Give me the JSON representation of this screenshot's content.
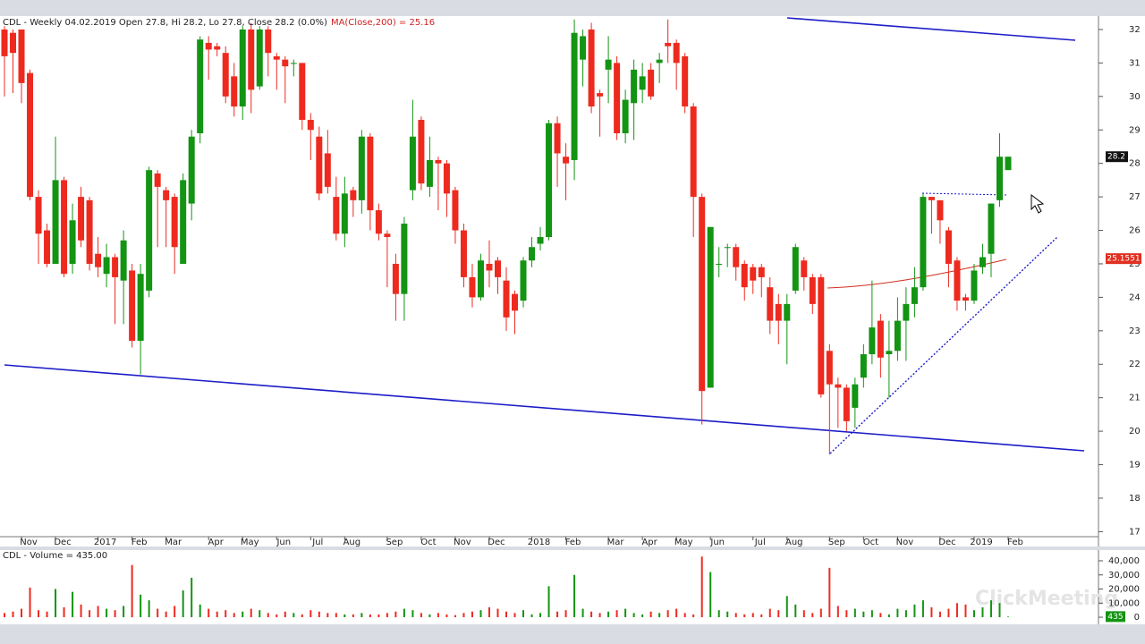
{
  "chart_data": [
    {
      "type": "candlestick",
      "header": "CDL - Weekly 04.02.2019 Open 27.8, Hi 28.2, Lo 27.8, Close 28.2 (0.0%)",
      "indicator": "MA(Close,200) = 25.16",
      "last_price": 28.2,
      "ma_last": 25.1551,
      "up_color": "#139413",
      "down_color": "#ee2a1f",
      "categories": [
        null,
        null,
        "Nov",
        null,
        null,
        null,
        "Dec",
        null,
        null,
        null,
        null,
        "2017",
        null,
        null,
        null,
        "Feb",
        null,
        null,
        null,
        "Mar",
        null,
        null,
        null,
        null,
        "Apr",
        null,
        null,
        null,
        "May",
        null,
        null,
        null,
        "Jun",
        null,
        null,
        null,
        "Jul",
        null,
        null,
        null,
        "Aug",
        null,
        null,
        null,
        null,
        "Sep",
        null,
        null,
        null,
        "Oct",
        null,
        null,
        null,
        "Nov",
        null,
        null,
        null,
        "Dec",
        null,
        null,
        null,
        null,
        "2018",
        null,
        null,
        null,
        "Feb",
        null,
        null,
        null,
        null,
        "Mar",
        null,
        null,
        null,
        "Apr",
        null,
        null,
        null,
        "May",
        null,
        null,
        null,
        "Jun",
        null,
        null,
        null,
        null,
        "Jul",
        null,
        null,
        null,
        "Aug",
        null,
        null,
        null,
        null,
        "Sep",
        null,
        null,
        null,
        "Oct",
        null,
        null,
        null,
        "Nov",
        null,
        null,
        null,
        null,
        "Dec",
        null,
        null,
        null,
        "2019",
        null,
        null,
        null,
        "Feb"
      ],
      "open": [
        32.0,
        31.9,
        32.0,
        30.7,
        27.0,
        26.0,
        25.0,
        27.5,
        25.0,
        27.0,
        26.9,
        25.3,
        24.7,
        25.2,
        24.5,
        24.8,
        22.7,
        24.2,
        27.7,
        27.2,
        27.0,
        25.0,
        26.8,
        28.9,
        31.6,
        31.5,
        31.3,
        30.6,
        29.7,
        32.0,
        30.3,
        32.0,
        31.2,
        31.1,
        31.0,
        31.0,
        29.3,
        28.8,
        28.3,
        27.0,
        25.9,
        27.2,
        26.9,
        28.8,
        26.6,
        25.9,
        25.0,
        24.1,
        27.2,
        29.3,
        27.3,
        28.1,
        28.0,
        27.2,
        26.0,
        24.6,
        24.0,
        25.0,
        25.1,
        24.5,
        24.1,
        23.9,
        25.1,
        25.6,
        25.8,
        29.2,
        28.2,
        28.1,
        31.1,
        32.0,
        30.1,
        30.8,
        31.0,
        28.9,
        29.8,
        30.2,
        30.8,
        31.0,
        31.6,
        31.6,
        31.2,
        29.7,
        27.0,
        21.3,
        25.0,
        25.5,
        25.5,
        25.0,
        24.9,
        24.9,
        24.3,
        23.8,
        23.3,
        24.2,
        25.1,
        24.6,
        24.6,
        22.4,
        21.4,
        21.3,
        20.7,
        21.6,
        22.3,
        23.3,
        22.3,
        22.4,
        23.3,
        23.8,
        24.3,
        27.0,
        26.9,
        26.0,
        25.1,
        24.0,
        23.9,
        24.9,
        25.3,
        26.9,
        27.8
      ],
      "high": [
        32.1,
        32.0,
        32.0,
        30.8,
        27.2,
        26.2,
        28.8,
        27.6,
        26.8,
        27.3,
        27.0,
        25.8,
        25.6,
        25.3,
        26.0,
        25.0,
        25.0,
        27.9,
        27.8,
        27.3,
        27.1,
        27.7,
        29.0,
        31.8,
        31.8,
        31.6,
        31.5,
        31.0,
        32.1,
        32.2,
        32.1,
        32.1,
        31.3,
        31.2,
        31.1,
        31.0,
        29.5,
        29.1,
        29.0,
        27.6,
        27.6,
        27.3,
        29.0,
        28.9,
        26.8,
        26.0,
        25.3,
        26.4,
        29.9,
        29.4,
        28.8,
        28.2,
        28.1,
        27.3,
        26.2,
        25.0,
        25.3,
        25.7,
        25.2,
        24.9,
        24.2,
        25.2,
        25.8,
        26.1,
        29.3,
        29.4,
        28.6,
        32.3,
        32.0,
        32.2,
        30.2,
        31.8,
        31.2,
        30.2,
        31.1,
        31.0,
        31.0,
        31.3,
        32.3,
        31.7,
        31.3,
        29.8,
        27.1,
        26.1,
        25.5,
        25.6,
        25.6,
        25.1,
        25.0,
        25.0,
        24.6,
        24.1,
        24.1,
        25.6,
        25.2,
        24.7,
        24.7,
        22.6,
        21.6,
        21.4,
        21.6,
        22.6,
        24.5,
        23.5,
        23.3,
        24.0,
        24.3,
        24.9,
        27.1,
        27.0,
        26.9,
        26.1,
        25.2,
        24.1,
        25.0,
        25.6,
        26.8,
        28.9,
        28.2
      ],
      "low": [
        30.0,
        30.1,
        29.8,
        26.9,
        25.0,
        24.9,
        25.0,
        24.6,
        24.7,
        25.5,
        24.8,
        24.6,
        24.3,
        23.2,
        23.2,
        22.5,
        21.7,
        24.0,
        25.5,
        25.5,
        24.7,
        25.0,
        26.3,
        28.6,
        30.5,
        31.2,
        29.8,
        29.4,
        29.3,
        29.5,
        30.2,
        30.6,
        30.2,
        29.8,
        30.6,
        29.0,
        28.1,
        26.9,
        27.1,
        25.7,
        25.5,
        26.4,
        26.5,
        26.0,
        25.7,
        24.3,
        23.3,
        23.3,
        26.9,
        27.2,
        27.0,
        26.6,
        26.4,
        25.6,
        24.3,
        23.7,
        23.9,
        24.3,
        24.1,
        23.0,
        22.9,
        23.7,
        24.9,
        25.4,
        25.7,
        27.3,
        26.9,
        27.5,
        30.3,
        29.5,
        28.8,
        29.8,
        28.7,
        28.6,
        28.7,
        29.8,
        29.9,
        30.4,
        31.0,
        30.2,
        29.5,
        25.8,
        20.2,
        21.3,
        24.6,
        24.9,
        24.5,
        23.9,
        24.1,
        24.0,
        22.9,
        22.6,
        22.0,
        24.1,
        24.2,
        23.5,
        21.0,
        19.3,
        20.1,
        20.0,
        20.1,
        21.3,
        22.0,
        21.6,
        21.0,
        22.1,
        22.1,
        23.4,
        24.2,
        25.9,
        25.6,
        24.3,
        23.6,
        23.6,
        23.8,
        24.7,
        24.6,
        26.7,
        27.8
      ],
      "close": [
        31.2,
        31.3,
        30.4,
        27.0,
        25.9,
        25.0,
        27.5,
        24.7,
        26.3,
        25.7,
        25.0,
        24.9,
        25.2,
        24.6,
        25.7,
        22.7,
        24.7,
        27.8,
        27.3,
        26.9,
        25.5,
        27.5,
        28.8,
        31.7,
        31.4,
        31.4,
        30.0,
        29.7,
        32.0,
        30.2,
        32.0,
        31.3,
        31.1,
        30.9,
        31.0,
        29.3,
        29.0,
        27.1,
        27.3,
        25.9,
        27.1,
        26.9,
        28.8,
        26.6,
        25.9,
        25.8,
        24.1,
        26.2,
        28.8,
        27.4,
        28.1,
        28.0,
        27.1,
        26.0,
        24.6,
        24.0,
        25.1,
        24.8,
        24.6,
        23.4,
        23.6,
        25.1,
        25.5,
        25.8,
        29.2,
        28.3,
        28.0,
        31.9,
        31.8,
        29.7,
        30.0,
        31.1,
        28.9,
        29.9,
        30.8,
        30.6,
        30.0,
        31.1,
        31.5,
        31.0,
        29.7,
        27.0,
        21.2,
        26.1,
        25.0,
        25.5,
        24.9,
        24.3,
        24.5,
        24.6,
        23.3,
        23.3,
        23.8,
        25.5,
        24.6,
        23.8,
        21.1,
        21.4,
        21.3,
        20.3,
        21.4,
        22.3,
        23.1,
        22.2,
        22.4,
        23.3,
        23.8,
        24.3,
        27.0,
        26.9,
        26.3,
        25.0,
        23.9,
        23.9,
        24.8,
        25.2,
        26.8,
        28.2,
        28.2
      ],
      "ylim": [
        16.85,
        32.4
      ],
      "yticks": [
        17,
        18,
        19,
        20,
        21,
        22,
        23,
        24,
        25,
        26,
        27,
        28,
        29,
        30,
        31,
        32
      ]
    },
    {
      "type": "bar",
      "header": "CDL - Volume = 435.00",
      "last_value": 435,
      "values": [
        3000,
        4000,
        6000,
        21000,
        5000,
        4000,
        20000,
        7000,
        18000,
        9000,
        5000,
        8000,
        6000,
        5000,
        8000,
        37000,
        16000,
        12000,
        6000,
        4000,
        8000,
        19000,
        28000,
        9000,
        6000,
        4000,
        5000,
        3000,
        4000,
        6000,
        5000,
        3000,
        2000,
        4000,
        3000,
        2000,
        5000,
        4000,
        3000,
        3000,
        2000,
        2000,
        3000,
        2000,
        2000,
        3000,
        4000,
        6000,
        5000,
        3000,
        2000,
        3000,
        2000,
        1500,
        3000,
        4000,
        5000,
        7000,
        6000,
        4000,
        3000,
        5000,
        2000,
        3000,
        22000,
        4000,
        5000,
        30000,
        6000,
        4000,
        3000,
        4000,
        5000,
        6000,
        3000,
        2000,
        4000,
        3000,
        5000,
        6000,
        3000,
        2000,
        43000,
        32000,
        5000,
        4000,
        3000,
        2000,
        3000,
        2000,
        6000,
        5000,
        15000,
        9000,
        5000,
        3000,
        6000,
        35000,
        8000,
        5000,
        6000,
        4000,
        5000,
        3000,
        2000,
        6000,
        5000,
        9000,
        12000,
        7000,
        4000,
        6000,
        10000,
        9000,
        5000,
        7000,
        12000,
        10000,
        435
      ],
      "ylim": [
        -4400,
        47600
      ],
      "yticks": [
        0,
        {
          "value": 10000,
          "label": "10,000"
        },
        {
          "value": 20000,
          "label": "20,000"
        },
        {
          "value": 30000,
          "label": "30,000"
        },
        {
          "value": 40000,
          "label": "40,000"
        }
      ]
    }
  ],
  "watermark": "ClickMeeting"
}
